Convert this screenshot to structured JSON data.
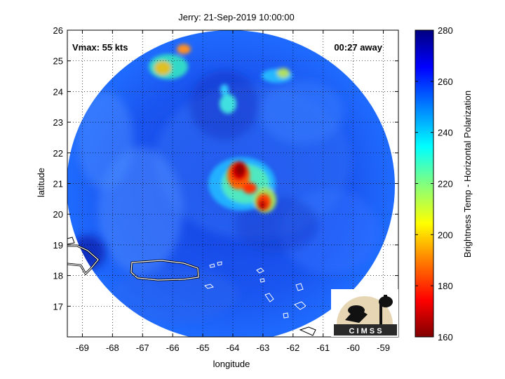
{
  "title": "Jerry: 21-Sep-2019 10:00:00",
  "overlay_left": "Vmax: 55 kts",
  "overlay_right": "00:27 away",
  "xlabel": "longitude",
  "ylabel": "latitude",
  "colorbar_label": "Brightness Temp - Horizontal Polarization",
  "logo_text": "C I M S S",
  "map": {
    "xlim": [
      -69.5,
      -58.5
    ],
    "ylim": [
      16,
      26
    ],
    "x_ticks": [
      -69,
      -68,
      -67,
      -66,
      -65,
      -64,
      -63,
      -62,
      -61,
      -60,
      -59
    ],
    "y_ticks": [
      17,
      18,
      19,
      20,
      21,
      22,
      23,
      24,
      25,
      26
    ],
    "grid": true,
    "swath_center": [
      -64.0,
      20.9
    ],
    "storm_core_lon_lat": [
      -63.8,
      21.1
    ]
  },
  "colorbar": {
    "range": [
      160,
      280
    ],
    "ticks": [
      160,
      180,
      200,
      220,
      240,
      260,
      280
    ],
    "colormap": "jet"
  }
}
